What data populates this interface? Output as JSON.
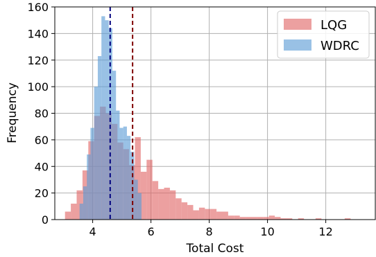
{
  "chart_data": {
    "type": "histogram",
    "xlabel": "Total Cost",
    "ylabel": "Frequency",
    "xlim": [
      2.7,
      13.7
    ],
    "ylim": [
      0,
      160
    ],
    "xticks": [
      4,
      6,
      8,
      10,
      12
    ],
    "yticks": [
      0,
      20,
      40,
      60,
      80,
      100,
      120,
      140,
      160
    ],
    "grid": true,
    "legend_position": "upper right",
    "series": [
      {
        "name": "LQG",
        "color": "#e06666",
        "bin_start": 3.05,
        "bin_width": 0.2,
        "values": [
          6,
          12,
          22,
          37,
          59,
          78,
          85,
          80,
          72,
          58,
          53,
          41,
          62,
          36,
          45,
          29,
          23,
          24,
          22,
          16,
          13,
          11,
          7,
          9,
          8,
          8,
          6,
          6,
          3,
          3,
          2,
          2,
          2,
          2,
          2,
          3,
          2,
          1,
          1,
          0,
          1,
          0,
          0,
          1,
          0,
          0,
          0,
          0,
          1,
          0,
          0
        ]
      },
      {
        "name": "WDRC",
        "color": "#5a9bd5",
        "bin_start": 3.55,
        "bin_width": 0.125,
        "values": [
          12,
          25,
          49,
          69,
          100,
          123,
          153,
          150,
          144,
          112,
          82,
          69,
          70,
          63,
          51,
          30,
          20
        ]
      }
    ],
    "vlines": [
      {
        "x": 4.6,
        "color": "#00007f",
        "style": "dashed"
      },
      {
        "x": 5.37,
        "color": "#7f0000",
        "style": "dashed"
      }
    ]
  }
}
